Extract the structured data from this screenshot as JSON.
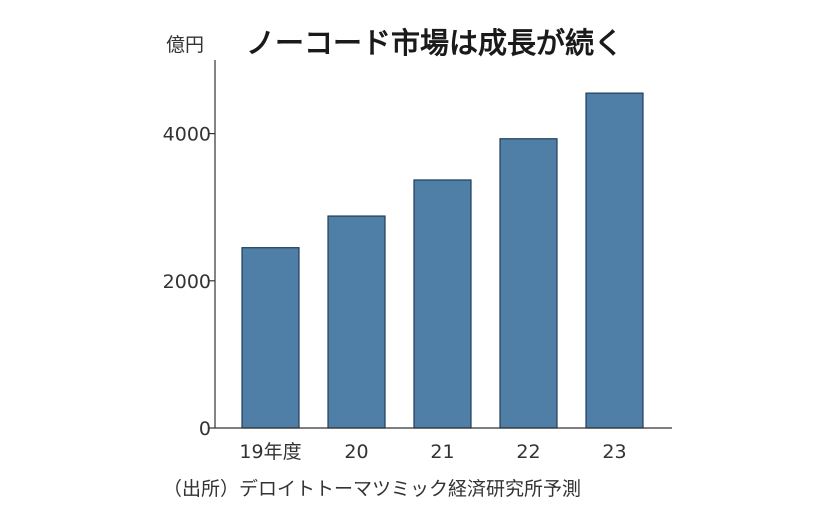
{
  "header": {
    "unit": "億円",
    "title": "ノーコード市場は成長が続く"
  },
  "source": "（出所）デロイトトーマツミック経済研究所予測",
  "colors": {
    "bar_fill": "#4f7ea6",
    "bar_stroke": "#1f3e5a",
    "axis": "#333333"
  },
  "chart_data": {
    "type": "bar",
    "categories": [
      "19年度",
      "20",
      "21",
      "22",
      "23"
    ],
    "values": [
      2450,
      2880,
      3370,
      3930,
      4550
    ],
    "ylabel": "億円",
    "ylim": [
      0,
      5000
    ],
    "yticks": [
      0,
      2000,
      4000
    ],
    "grid": false,
    "legend": "none"
  }
}
